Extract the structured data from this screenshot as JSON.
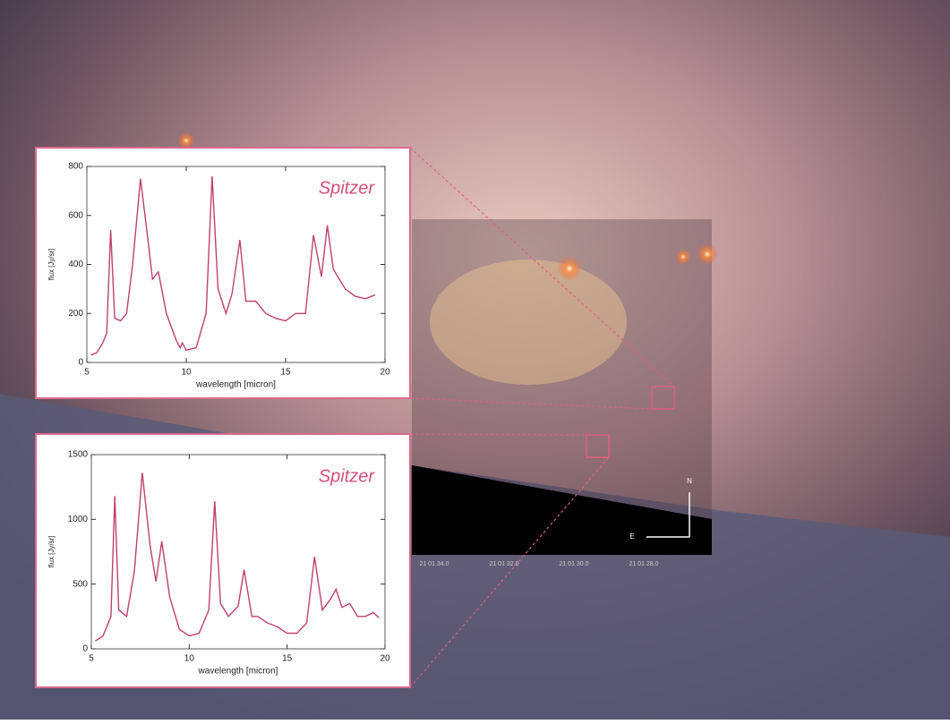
{
  "chart_data": [
    {
      "type": "line",
      "annotation": "Spitzer",
      "xlabel": "wavelength [micron]",
      "ylabel": "flux [Jy/sr]",
      "color": "#c0406a",
      "x": [
        5.2,
        5.5,
        5.8,
        6.0,
        6.2,
        6.4,
        6.7,
        7.0,
        7.3,
        7.7,
        8.0,
        8.3,
        8.6,
        9.0,
        9.5,
        9.7,
        9.8,
        10.0,
        10.5,
        11.0,
        11.3,
        11.6,
        12.0,
        12.3,
        12.7,
        13.0,
        13.5,
        14.0,
        14.5,
        15.0,
        15.5,
        16.0,
        16.4,
        16.8,
        17.1,
        17.4,
        18.0,
        18.5,
        19.0,
        19.5
      ],
      "values": [
        30,
        40,
        80,
        120,
        540,
        180,
        170,
        200,
        400,
        750,
        550,
        340,
        370,
        200,
        90,
        60,
        80,
        50,
        60,
        200,
        760,
        300,
        200,
        280,
        500,
        250,
        250,
        200,
        180,
        170,
        200,
        200,
        520,
        350,
        560,
        380,
        300,
        270,
        260,
        275
      ],
      "xlim": [
        5,
        20
      ],
      "ylim": [
        0,
        800
      ],
      "xticks": [
        5,
        10,
        15,
        20
      ],
      "yticks": [
        0,
        200,
        400,
        600,
        800
      ]
    },
    {
      "type": "line",
      "annotation": "Spitzer",
      "xlabel": "wavelength [micron]",
      "ylabel": "flux [Jy/sr]",
      "color": "#c0406a",
      "x": [
        5.2,
        5.6,
        6.0,
        6.2,
        6.4,
        6.8,
        7.2,
        7.6,
        8.0,
        8.3,
        8.6,
        9.0,
        9.5,
        10.0,
        10.5,
        11.0,
        11.3,
        11.6,
        12.0,
        12.5,
        12.8,
        13.2,
        13.5,
        14.0,
        14.5,
        15.0,
        15.5,
        16.0,
        16.4,
        16.8,
        17.2,
        17.5,
        17.8,
        18.2,
        18.6,
        19.0,
        19.4,
        19.7
      ],
      "values": [
        60,
        100,
        250,
        1180,
        300,
        250,
        600,
        1360,
        800,
        520,
        830,
        400,
        150,
        100,
        120,
        300,
        1140,
        350,
        250,
        330,
        610,
        250,
        250,
        200,
        170,
        120,
        120,
        200,
        710,
        300,
        380,
        460,
        320,
        350,
        250,
        250,
        280,
        240
      ],
      "xlim": [
        5,
        20
      ],
      "ylim": [
        0,
        1500
      ],
      "xticks": [
        5,
        10,
        15,
        20
      ],
      "yticks": [
        0,
        500,
        1000,
        1500
      ]
    }
  ],
  "image_labels": {
    "ra": [
      "21 01 34.0",
      "21 01 32.0",
      "21 01 30.0",
      "21 01 28.0"
    ],
    "north": "N",
    "east": "E"
  }
}
